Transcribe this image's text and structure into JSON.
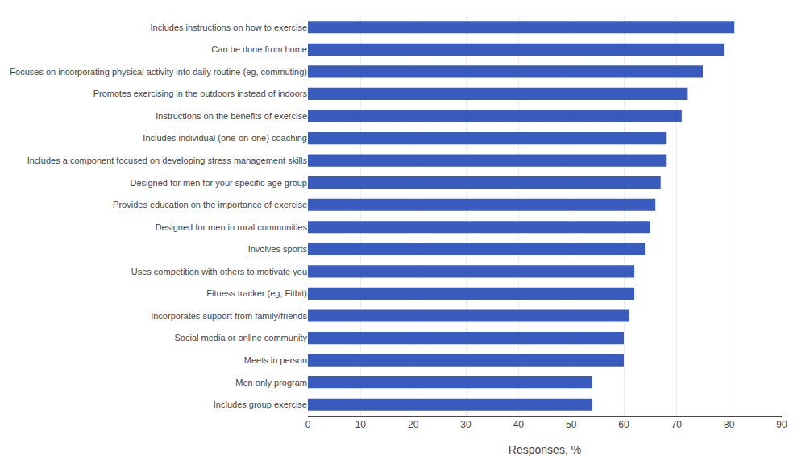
{
  "chart_data": {
    "type": "bar",
    "orientation": "horizontal",
    "categories": [
      "Includes instructions on how to exercise",
      "Can be done from home",
      "Focuses on incorporating physical activity into daily routine (eg, commuting)",
      "Promotes exercising in the outdoors instead of indoors",
      "Instructions on the benefits of exercise",
      "Includes individual (one-on-one) coaching",
      "Includes a component focused on developing stress management skills",
      "Designed for men for your specific age group",
      "Provides education on the importance of exercise",
      "Designed for men in rural communities",
      "Involves sports",
      "Uses competition with others to motivate you",
      "Fitness tracker (eg, Fitbit)",
      "Incorporates support from family/friends",
      "Social media or online community",
      "Meets in person",
      "Men only program",
      "Includes group exercise"
    ],
    "values": [
      81,
      79,
      75,
      72,
      71,
      68,
      68,
      67,
      66,
      65,
      64,
      62,
      62,
      61,
      60,
      60,
      54,
      54
    ],
    "color": "#3A5BBE",
    "xlabel": "Responses, %",
    "xlim": [
      0,
      90
    ],
    "xticks": [
      0,
      10,
      20,
      30,
      40,
      50,
      60,
      70,
      80,
      90
    ],
    "grid": true
  }
}
